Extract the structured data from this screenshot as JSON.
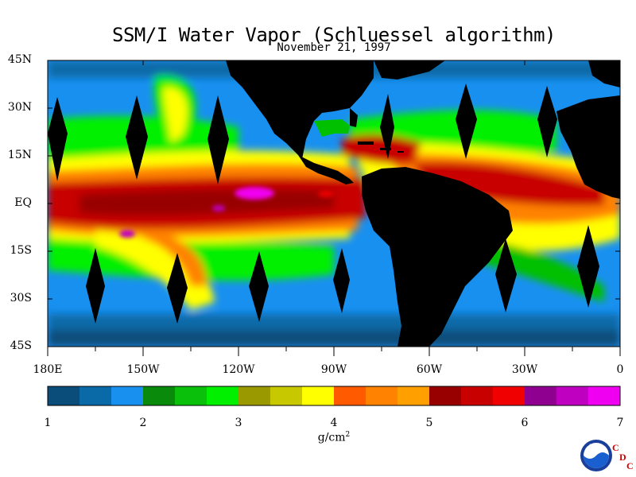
{
  "title": "SSM/I Water Vapor (Schluessel algorithm)",
  "date": "November 21, 1997",
  "lat_labels": [
    "45N",
    "30N",
    "15N",
    "EQ",
    "15S",
    "30S",
    "45S"
  ],
  "lon_labels": [
    "180E",
    "150W",
    "120W",
    "90W",
    "60W",
    "30W",
    "0"
  ],
  "colorbar": {
    "tick_labels": [
      "1",
      "2",
      "3",
      "4",
      "5",
      "6",
      "7"
    ],
    "units_text": "g/cm",
    "units_exp": "2",
    "colors": [
      "#0a4d7a",
      "#0a6aa8",
      "#1890f0",
      "#0a8a0a",
      "#0ac00a",
      "#00f000",
      "#9a9a00",
      "#c8c800",
      "#ffff00",
      "#ff5a00",
      "#ff8200",
      "#ffa000",
      "#980000",
      "#c80000",
      "#f00000",
      "#900090",
      "#c000c0",
      "#f000f0"
    ]
  },
  "logo": {
    "noaa": "NOAA",
    "cdc": [
      "C",
      "D",
      "C"
    ]
  },
  "chart_data": {
    "type": "map",
    "variable": "water vapor",
    "units": "g/cm2",
    "range": [
      1,
      7
    ],
    "lat_range": [
      "45S",
      "45N"
    ],
    "lon_range": [
      "180E",
      "0"
    ]
  }
}
